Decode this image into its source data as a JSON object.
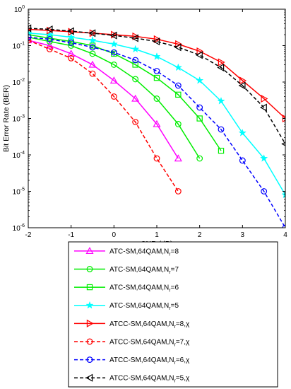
{
  "chart_data": {
    "type": "line",
    "xlabel": "SNR (dB)",
    "ylabel": "Bit Error Rate (BER)",
    "xlim": [
      -2,
      4
    ],
    "ylim": [
      1e-06,
      1
    ],
    "yscale": "log",
    "xticks": [
      "-2",
      "-1",
      "0",
      "1",
      "2",
      "3",
      "4"
    ],
    "yticks": [
      {
        "base": "10",
        "exp": "0"
      },
      {
        "base": "10",
        "exp": "-1"
      },
      {
        "base": "10",
        "exp": "-2"
      },
      {
        "base": "10",
        "exp": "-3"
      },
      {
        "base": "10",
        "exp": "-4"
      },
      {
        "base": "10",
        "exp": "-5"
      },
      {
        "base": "10",
        "exp": "-6"
      }
    ],
    "grid": false,
    "legend_position": "bottom",
    "series": [
      {
        "label": {
          "pre": "ATC-SM,64QAM,N",
          "sub": "r",
          "post": "=8"
        },
        "color": "#ff00ff",
        "dash": "solid",
        "marker": "triangle-up",
        "x": [
          -2,
          -1.5,
          -1,
          -0.5,
          0,
          0.5,
          1,
          1.5
        ],
        "y": [
          0.14,
          0.1,
          0.06,
          0.03,
          0.011,
          0.0035,
          0.0007,
          8e-05
        ]
      },
      {
        "label": {
          "pre": "ATC-SM,64QAM,N",
          "sub": "r",
          "post": "=7"
        },
        "color": "#00ee00",
        "dash": "solid",
        "marker": "circle",
        "x": [
          -2,
          -1.5,
          -1,
          -0.5,
          0,
          0.5,
          1,
          1.5,
          2
        ],
        "y": [
          0.17,
          0.13,
          0.1,
          0.06,
          0.03,
          0.012,
          0.0035,
          0.0007,
          8e-05
        ]
      },
      {
        "label": {
          "pre": "ATC-SM,64QAM,N",
          "sub": "r",
          "post": "=6"
        },
        "color": "#00ee00",
        "dash": "solid",
        "marker": "square",
        "x": [
          -2,
          -1.5,
          -1,
          -0.5,
          0,
          0.5,
          1,
          1.5,
          2,
          2.5
        ],
        "y": [
          0.2,
          0.16,
          0.13,
          0.1,
          0.06,
          0.03,
          0.013,
          0.0045,
          0.001,
          0.00013
        ]
      },
      {
        "label": {
          "pre": "ATC-SM,64QAM,N",
          "sub": "r",
          "post": "=5"
        },
        "color": "#00ffff",
        "dash": "solid",
        "marker": "star",
        "x": [
          -2,
          -1.5,
          -1,
          -0.5,
          0,
          0.5,
          1,
          1.5,
          2,
          2.5,
          3,
          3.5,
          4
        ],
        "y": [
          0.22,
          0.2,
          0.17,
          0.14,
          0.11,
          0.08,
          0.05,
          0.025,
          0.011,
          0.003,
          0.0004,
          8e-05,
          8e-06
        ]
      },
      {
        "label": {
          "pre": "ATCC-SM,64QAM,N",
          "sub": "r",
          "post": "=8,χ"
        },
        "color": "#ff0000",
        "dash": "solid",
        "marker": "triangle-right",
        "x": [
          -2,
          -1.5,
          -1,
          -0.5,
          0,
          0.5,
          1,
          1.5,
          2,
          2.5,
          3,
          3.5,
          4
        ],
        "y": [
          0.28,
          0.26,
          0.24,
          0.22,
          0.2,
          0.18,
          0.15,
          0.11,
          0.07,
          0.035,
          0.011,
          0.0035,
          0.001
        ]
      },
      {
        "label": {
          "pre": "ATCC-SM,64QAM,N",
          "sub": "r",
          "post": "=7,χ"
        },
        "color": "#ff0000",
        "dash": "dashed",
        "marker": "circle",
        "x": [
          -2,
          -1.5,
          -1,
          -0.5,
          0,
          0.5,
          1,
          1.5
        ],
        "y": [
          0.14,
          0.08,
          0.045,
          0.017,
          0.004,
          0.0008,
          8e-05,
          1e-05
        ]
      },
      {
        "label": {
          "pre": "ATCC-SM,64QAM,N",
          "sub": "r",
          "post": "=6,χ"
        },
        "color": "#0000ff",
        "dash": "dashed",
        "marker": "circle",
        "x": [
          -2,
          -1.5,
          -1,
          -0.5,
          0,
          0.5,
          1,
          1.5,
          2,
          2.5,
          3,
          3.5,
          4
        ],
        "y": [
          0.17,
          0.15,
          0.12,
          0.09,
          0.065,
          0.04,
          0.02,
          0.008,
          0.002,
          0.0005,
          7e-05,
          1e-05,
          1e-06
        ]
      },
      {
        "label": {
          "pre": "ATCC-SM,64QAM,N",
          "sub": "r",
          "post": "=5,χ"
        },
        "color": "#000000",
        "dash": "dashed",
        "marker": "triangle-left",
        "x": [
          -2,
          -1.5,
          -1,
          -0.5,
          0,
          0.5,
          1,
          1.5,
          2,
          2.5,
          3,
          3.5,
          4
        ],
        "y": [
          0.3,
          0.28,
          0.25,
          0.22,
          0.19,
          0.16,
          0.13,
          0.09,
          0.055,
          0.025,
          0.008,
          0.002,
          0.0002
        ]
      }
    ]
  }
}
